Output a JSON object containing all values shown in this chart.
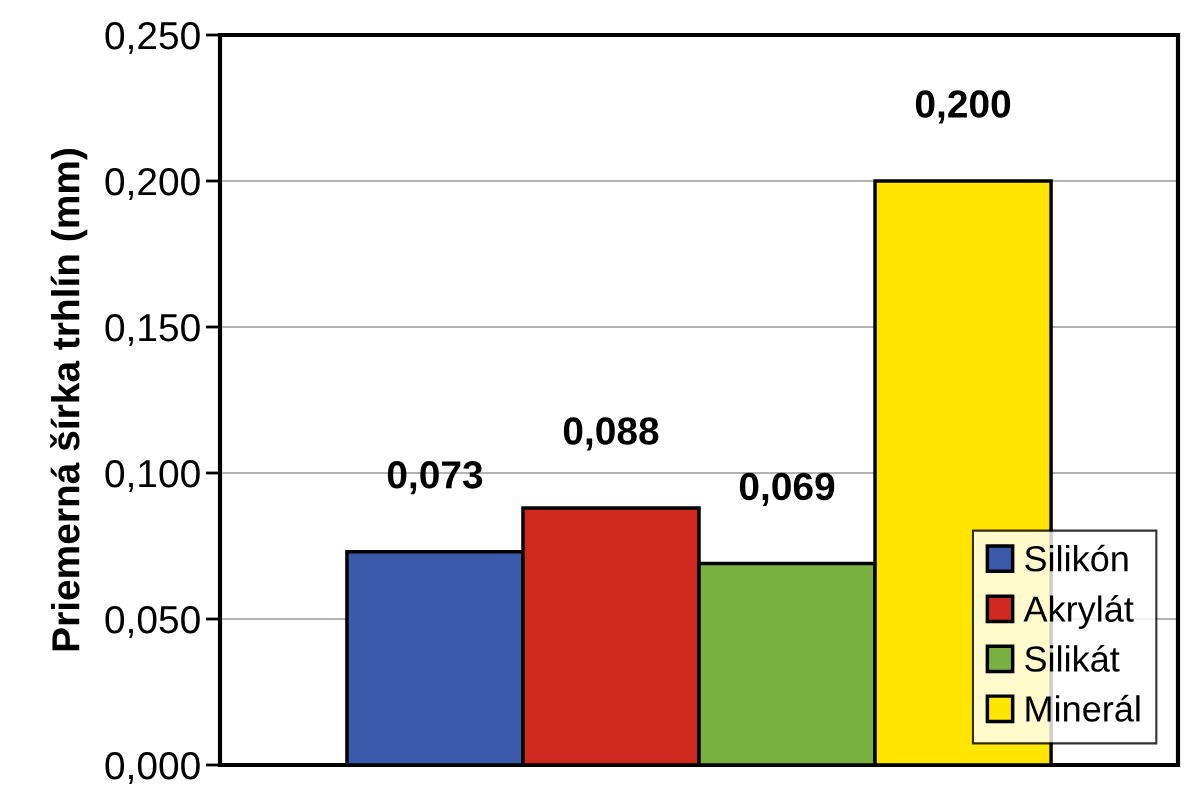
{
  "chart_data": {
    "type": "bar",
    "ylabel": "Priemerná šírka trhlín (mm)",
    "categories": [
      null
    ],
    "series": [
      {
        "name": "Silikón",
        "color": "#3a5bab",
        "values": [
          0.073
        ],
        "value_labels": [
          "0,073"
        ]
      },
      {
        "name": "Akrylát",
        "color": "#d02a20",
        "values": [
          0.088
        ],
        "value_labels": [
          "0,088"
        ]
      },
      {
        "name": "Silikát",
        "color": "#7ab040",
        "values": [
          0.069
        ],
        "value_labels": [
          "0,069"
        ]
      },
      {
        "name": "Minerál",
        "color": "#ffe600",
        "values": [
          0.2
        ],
        "value_labels": [
          "0,200"
        ]
      }
    ],
    "ylim": [
      0,
      0.25
    ],
    "yticks": [
      {
        "value": 0,
        "label": "0,000"
      },
      {
        "value": 0.05,
        "label": "0,050"
      },
      {
        "value": 0.1,
        "label": "0,100"
      },
      {
        "value": 0.15,
        "label": "0,150"
      },
      {
        "value": 0.2,
        "label": "0,200"
      },
      {
        "value": 0.25,
        "label": "0,250"
      }
    ],
    "grid": "y",
    "legend": "bottom right"
  }
}
